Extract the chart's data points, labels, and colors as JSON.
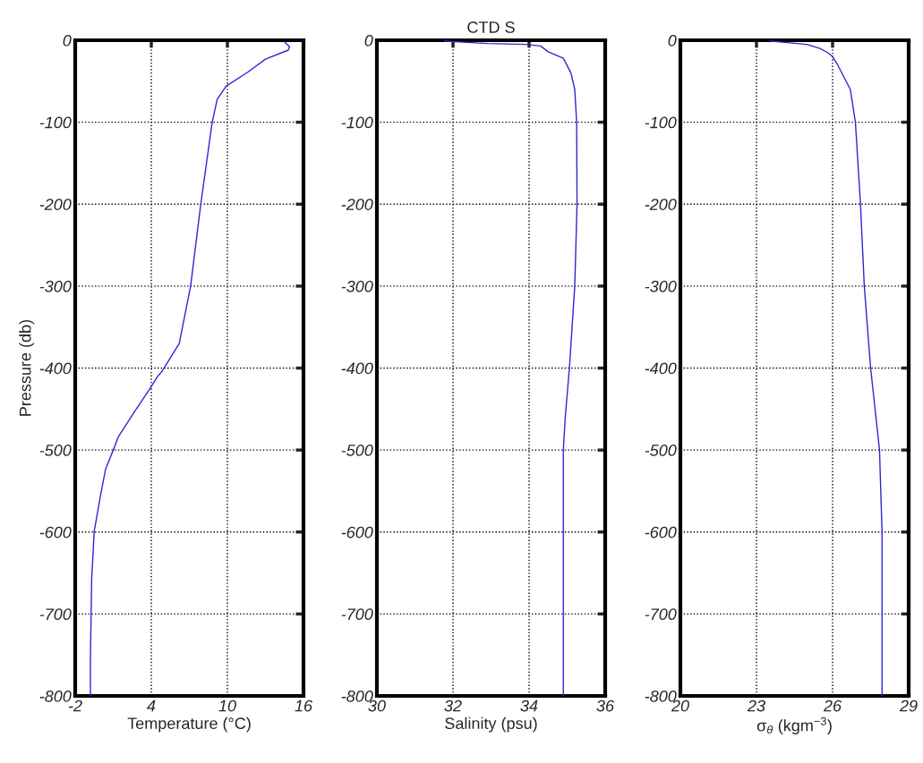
{
  "chart_data": [
    {
      "type": "line",
      "xlabel": "Temperature (°C)",
      "ylabel": "Pressure (db)",
      "xlim": [
        -2,
        16
      ],
      "xticks": [
        -2,
        4,
        10,
        16
      ],
      "ylim": [
        -800,
        0
      ],
      "yticks": [
        -800,
        -700,
        -600,
        -500,
        -400,
        -300,
        -200,
        -100,
        0
      ],
      "grid": true,
      "line_style": "solid",
      "series": [
        {
          "color": "#2a2ad0",
          "x": [
            14.5,
            14.9,
            14.8,
            13.0,
            11.6,
            9.9,
            9.2,
            8.8,
            7.9,
            7.1,
            6.2,
            4.8,
            4.5,
            3.9,
            2.6,
            1.4,
            1.0,
            0.4,
            0.0,
            -0.5,
            -0.7,
            -0.8,
            -0.8
          ],
          "values": [
            -2,
            -8,
            -12,
            -23,
            -39,
            -56,
            -72,
            -100,
            -200,
            -300,
            -370,
            -405,
            -410,
            -425,
            -455,
            -484,
            -500,
            -523,
            -555,
            -599,
            -657,
            -755,
            -800
          ]
        }
      ]
    },
    {
      "type": "line",
      "title": "CTD S",
      "xlabel": "Salinity (psu)",
      "xlim": [
        30,
        36
      ],
      "xticks": [
        30,
        32,
        34,
        36
      ],
      "ylim": [
        -800,
        0
      ],
      "yticks": [
        -800,
        -700,
        -600,
        -500,
        -400,
        -300,
        -200,
        -100,
        0
      ],
      "grid": true,
      "line_style": "solid",
      "series": [
        {
          "color": "#2a2ad0",
          "x": [
            31.78,
            32.9,
            33.9,
            34.3,
            34.5,
            34.9,
            35.1,
            35.2,
            35.25,
            35.26,
            35.2,
            35.06,
            34.95,
            34.9,
            34.9
          ],
          "values": [
            -1,
            -4,
            -5,
            -7,
            -14,
            -22,
            -40,
            -60,
            -100,
            -200,
            -300,
            -400,
            -460,
            -500,
            -800
          ]
        }
      ]
    },
    {
      "type": "line",
      "xlabel": "σ$_{θ}$ (kgm$^{−3}$)",
      "xlim": [
        20,
        29
      ],
      "xticks": [
        20,
        23,
        26,
        29
      ],
      "ylim": [
        -800,
        0
      ],
      "yticks": [
        -800,
        -700,
        -600,
        -500,
        -400,
        -300,
        -200,
        -100,
        0
      ],
      "grid": true,
      "line_style": "solid",
      "series": [
        {
          "color": "#2a2ad0",
          "x": [
            23.53,
            24.98,
            25.5,
            25.8,
            26.0,
            26.2,
            26.7,
            26.9,
            27.1,
            27.25,
            27.5,
            27.85,
            27.95,
            27.95
          ],
          "values": [
            -1,
            -5,
            -10,
            -15,
            -20,
            -30,
            -60,
            -100,
            -200,
            -300,
            -400,
            -500,
            -600,
            -800
          ]
        }
      ]
    }
  ]
}
